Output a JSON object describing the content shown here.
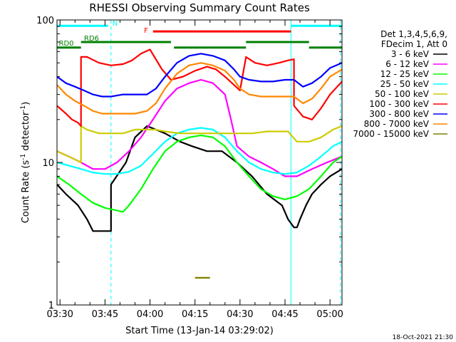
{
  "chart_data": {
    "type": "line",
    "title": "RHESSI Observing Summary Count Rates",
    "xlabel": "Start Time (13-Jan-14 03:29:02)",
    "ylabel_main": "Count Rate (s",
    "ylabel_sup1": "-1",
    "ylabel_mid": " detector",
    "ylabel_sup2": "-1",
    "ylabel_end": ")",
    "y_scale": "log",
    "ylim": [
      1,
      100
    ],
    "xlim_minutes": [
      0,
      95
    ],
    "x_ticks": [
      {
        "m": 1,
        "label": "03:30"
      },
      {
        "m": 16,
        "label": "03:45"
      },
      {
        "m": 31,
        "label": "04:00"
      },
      {
        "m": 46,
        "label": "04:15"
      },
      {
        "m": 61,
        "label": "04:30"
      },
      {
        "m": 76,
        "label": "04:45"
      },
      {
        "m": 91,
        "label": "05:00"
      }
    ],
    "y_ticks": [
      {
        "v": 1,
        "label": "1"
      },
      {
        "v": 10,
        "label": "10"
      },
      {
        "v": 100,
        "label": "100"
      }
    ],
    "legend_header": [
      "Det 1,3,4,5,6,9,",
      "FDecim 1, Att 0"
    ],
    "series": [
      {
        "name": "3 - 6 keV",
        "color": "#000000",
        "points": [
          [
            0,
            7
          ],
          [
            3,
            6
          ],
          [
            7,
            5
          ],
          [
            10,
            4
          ],
          [
            12,
            3.3
          ],
          [
            18,
            3.3
          ],
          [
            18,
            7
          ],
          [
            23,
            10
          ],
          [
            26,
            15
          ],
          [
            30,
            18
          ],
          [
            33,
            17
          ],
          [
            36,
            16
          ],
          [
            41,
            14
          ],
          [
            45,
            13
          ],
          [
            50,
            12
          ],
          [
            55,
            12
          ],
          [
            60,
            10
          ],
          [
            65,
            8
          ],
          [
            70,
            6
          ],
          [
            75,
            5
          ],
          [
            77,
            4
          ],
          [
            79,
            3.5
          ],
          [
            80,
            3.5
          ],
          [
            81,
            4
          ],
          [
            83,
            5
          ],
          [
            85,
            6
          ],
          [
            88,
            7
          ],
          [
            91,
            8
          ],
          [
            95,
            9
          ]
        ]
      },
      {
        "name": "6 - 12 keV",
        "color": "#ff00ff",
        "points": [
          [
            0,
            12
          ],
          [
            4,
            11
          ],
          [
            8,
            10
          ],
          [
            12,
            9
          ],
          [
            16,
            9
          ],
          [
            20,
            10
          ],
          [
            24,
            12
          ],
          [
            28,
            15
          ],
          [
            32,
            20
          ],
          [
            36,
            27
          ],
          [
            40,
            33
          ],
          [
            44,
            36
          ],
          [
            48,
            38
          ],
          [
            52,
            36
          ],
          [
            56,
            30
          ],
          [
            58,
            20
          ],
          [
            60,
            13
          ],
          [
            64,
            11
          ],
          [
            68,
            10
          ],
          [
            72,
            9
          ],
          [
            76,
            8
          ],
          [
            80,
            8
          ],
          [
            85,
            9
          ],
          [
            90,
            10
          ],
          [
            95,
            11
          ]
        ]
      },
      {
        "name": "12 - 25 keV",
        "color": "#00ff00",
        "points": [
          [
            0,
            8
          ],
          [
            4,
            7
          ],
          [
            8,
            6
          ],
          [
            12,
            5.2
          ],
          [
            16,
            4.8
          ],
          [
            20,
            4.6
          ],
          [
            22,
            4.5
          ],
          [
            24,
            5
          ],
          [
            28,
            6.5
          ],
          [
            32,
            9
          ],
          [
            36,
            12
          ],
          [
            40,
            14
          ],
          [
            44,
            15
          ],
          [
            48,
            15.5
          ],
          [
            52,
            15
          ],
          [
            56,
            13
          ],
          [
            60,
            10
          ],
          [
            64,
            8
          ],
          [
            68,
            6.5
          ],
          [
            72,
            5.8
          ],
          [
            76,
            5.5
          ],
          [
            80,
            5.8
          ],
          [
            84,
            6.5
          ],
          [
            88,
            8
          ],
          [
            92,
            10
          ],
          [
            95,
            11
          ]
        ]
      },
      {
        "name": "25 - 50 keV",
        "color": "#00ffff",
        "points": [
          [
            0,
            10
          ],
          [
            4,
            9.5
          ],
          [
            8,
            9
          ],
          [
            12,
            8.5
          ],
          [
            16,
            8.3
          ],
          [
            20,
            8.3
          ],
          [
            24,
            8.6
          ],
          [
            28,
            9.5
          ],
          [
            32,
            11.5
          ],
          [
            36,
            14
          ],
          [
            40,
            16
          ],
          [
            44,
            17
          ],
          [
            48,
            17.5
          ],
          [
            52,
            17
          ],
          [
            56,
            15
          ],
          [
            60,
            12
          ],
          [
            64,
            10
          ],
          [
            68,
            9
          ],
          [
            72,
            8.5
          ],
          [
            76,
            8.3
          ],
          [
            80,
            8.5
          ],
          [
            84,
            9.5
          ],
          [
            88,
            11
          ],
          [
            92,
            13
          ],
          [
            95,
            14
          ]
        ]
      },
      {
        "name": "50 - 100 keV",
        "color": "#cccc00",
        "points": [
          [
            0,
            12
          ],
          [
            4,
            11
          ],
          [
            8,
            10
          ],
          [
            8,
            18
          ],
          [
            10,
            17
          ],
          [
            14,
            16
          ],
          [
            18,
            16
          ],
          [
            22,
            16
          ],
          [
            26,
            17
          ],
          [
            30,
            17
          ],
          [
            33,
            17
          ],
          [
            36,
            16.5
          ],
          [
            41,
            16
          ],
          [
            45,
            16
          ],
          [
            50,
            16
          ],
          [
            55,
            16
          ],
          [
            60,
            16
          ],
          [
            65,
            16
          ],
          [
            70,
            16.5
          ],
          [
            75,
            16.5
          ],
          [
            77,
            16.5
          ],
          [
            80,
            14
          ],
          [
            84,
            14
          ],
          [
            88,
            15
          ],
          [
            92,
            17
          ],
          [
            95,
            18
          ]
        ]
      },
      {
        "name": "100 - 300 keV",
        "color": "#ff0000",
        "points": [
          [
            0,
            25
          ],
          [
            3,
            22
          ],
          [
            5,
            20
          ],
          [
            7,
            19
          ],
          [
            8,
            18
          ],
          [
            8,
            55
          ],
          [
            10,
            55
          ],
          [
            14,
            50
          ],
          [
            18,
            48
          ],
          [
            22,
            49
          ],
          [
            25,
            52
          ],
          [
            28,
            58
          ],
          [
            31,
            62
          ],
          [
            35,
            45
          ],
          [
            38,
            38
          ],
          [
            42,
            40
          ],
          [
            46,
            44
          ],
          [
            50,
            47
          ],
          [
            53,
            45
          ],
          [
            56,
            40
          ],
          [
            59,
            35
          ],
          [
            61,
            32
          ],
          [
            63,
            55
          ],
          [
            66,
            50
          ],
          [
            70,
            48
          ],
          [
            74,
            50
          ],
          [
            77,
            52
          ],
          [
            79,
            53
          ],
          [
            79,
            25
          ],
          [
            82,
            21
          ],
          [
            85,
            20
          ],
          [
            88,
            24
          ],
          [
            91,
            30
          ],
          [
            95,
            37
          ]
        ]
      },
      {
        "name": "300 - 800 keV",
        "color": "#0000ff",
        "points": [
          [
            0,
            40
          ],
          [
            3,
            36
          ],
          [
            6,
            34
          ],
          [
            9,
            32
          ],
          [
            12,
            30
          ],
          [
            15,
            29
          ],
          [
            18,
            29
          ],
          [
            22,
            30
          ],
          [
            26,
            30
          ],
          [
            30,
            30
          ],
          [
            33,
            33
          ],
          [
            36,
            40
          ],
          [
            40,
            50
          ],
          [
            44,
            56
          ],
          [
            48,
            58
          ],
          [
            52,
            56
          ],
          [
            56,
            52
          ],
          [
            59,
            45
          ],
          [
            61,
            40
          ],
          [
            64,
            38
          ],
          [
            68,
            37
          ],
          [
            72,
            37
          ],
          [
            76,
            38
          ],
          [
            79,
            38
          ],
          [
            82,
            34
          ],
          [
            85,
            36
          ],
          [
            88,
            40
          ],
          [
            91,
            46
          ],
          [
            95,
            50
          ]
        ]
      },
      {
        "name": "800 - 7000 keV",
        "color": "#ff8800",
        "points": [
          [
            0,
            35
          ],
          [
            3,
            30
          ],
          [
            6,
            27
          ],
          [
            9,
            25
          ],
          [
            12,
            23
          ],
          [
            15,
            22
          ],
          [
            18,
            22
          ],
          [
            22,
            22
          ],
          [
            26,
            22
          ],
          [
            30,
            23
          ],
          [
            33,
            26
          ],
          [
            36,
            33
          ],
          [
            40,
            42
          ],
          [
            44,
            48
          ],
          [
            48,
            50
          ],
          [
            52,
            48
          ],
          [
            56,
            44
          ],
          [
            59,
            38
          ],
          [
            61,
            33
          ],
          [
            64,
            30
          ],
          [
            68,
            29
          ],
          [
            72,
            29
          ],
          [
            76,
            29
          ],
          [
            79,
            29
          ],
          [
            82,
            26
          ],
          [
            85,
            28
          ],
          [
            88,
            33
          ],
          [
            91,
            40
          ],
          [
            95,
            45
          ]
        ]
      },
      {
        "name": "7000 - 15000 keV",
        "color": "#808000",
        "points": [
          [
            46,
            1.55
          ],
          [
            47,
            1.55
          ],
          [
            48,
            1.55
          ],
          [
            49,
            1.55
          ],
          [
            50,
            1.55
          ],
          [
            51,
            1.55
          ]
        ]
      }
    ],
    "annotations": {
      "N_label": "N",
      "F_label": "F",
      "RD0_label": "RD0",
      "RD6_label": "RD6",
      "timestamp": "18-Oct-2021 21:30"
    },
    "bars": {
      "N": {
        "color": "#00ffff",
        "y_value": 91,
        "segments": [
          [
            0,
            17
          ],
          [
            78,
            95
          ]
        ]
      },
      "F": {
        "color": "#ff0000",
        "y_value": 83,
        "segments": [
          [
            32,
            78
          ]
        ]
      },
      "RD0": {
        "color": "#008000",
        "y_value": 64,
        "segments": [
          [
            0,
            8
          ],
          [
            39,
            63
          ],
          [
            84,
            95
          ]
        ]
      },
      "RD6": {
        "color": "#008000",
        "y_value": 70,
        "segments": [
          [
            8,
            38
          ],
          [
            63,
            84
          ]
        ]
      }
    },
    "vlines": [
      {
        "m": 0,
        "color": "#00ffff",
        "dash": false
      },
      {
        "m": 18,
        "color": "#00ffff",
        "dash": true
      },
      {
        "m": 78,
        "color": "#00ffff",
        "dash": false
      },
      {
        "m": 94.5,
        "color": "#00ffff",
        "dash": true
      }
    ],
    "grid": false,
    "legend_placement": "right"
  }
}
